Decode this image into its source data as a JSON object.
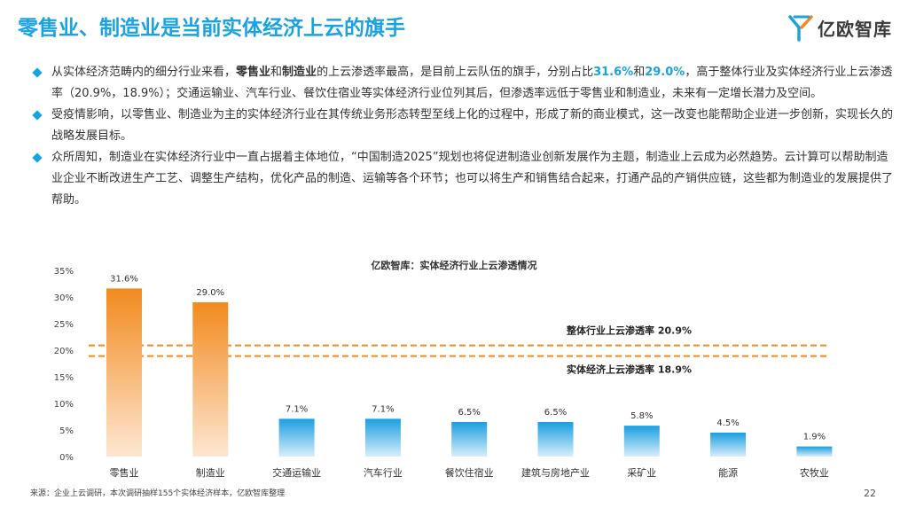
{
  "title": "零售业、制造业是当前实体经济上云的旗手",
  "logo": {
    "text": "亿欧智库",
    "icon": "yiou-logo-icon"
  },
  "bullets": [
    {
      "segments": [
        {
          "t": "从实体经济范畴内的细分行业来看，",
          "s": ""
        },
        {
          "t": "零售业",
          "s": "hl"
        },
        {
          "t": "和",
          "s": ""
        },
        {
          "t": "制造业",
          "s": "hl"
        },
        {
          "t": "的上云渗透率最高，是目前上云队伍的旗手，分别占比",
          "s": ""
        },
        {
          "t": "31.6%",
          "s": "hl-blue"
        },
        {
          "t": "和",
          "s": ""
        },
        {
          "t": "29.0%",
          "s": "hl-blue"
        },
        {
          "t": "，高于整体行业及实体经济行业上云渗透率（20.9%，18.9%）；交通运输业、汽车行业、餐饮住宿业等实体经济行业位列其后，但渗透率远低于零售业和制造业，未来有一定增长潜力及空间。",
          "s": ""
        }
      ]
    },
    {
      "segments": [
        {
          "t": "受疫情影响，以零售业、制造业为主的实体经济行业在其传统业务形态转型至线上化的过程中，形成了新的商业模式，这一改变也能帮助企业进一步创新，实现长久的战略发展目标。",
          "s": ""
        }
      ]
    },
    {
      "segments": [
        {
          "t": "众所周知，制造业在实体经济行业中一直占据着主体地位，“中国制造2025”规划也将促进制造业创新发展作为主题，制造业上云成为必然趋势。云计算可以帮助制造业企业不断改进生产工艺、调整生产结构，优化产品的制造、运输等各个环节；也可以将生产和销售结合起来，打通产品的产销供应链，这些都为制造业的发展提供了帮助。",
          "s": ""
        }
      ]
    }
  ],
  "chart_data": {
    "type": "bar",
    "title": "亿欧智库：实体经济行业上云渗透情况",
    "categories": [
      "零售业",
      "制造业",
      "交通运输业",
      "汽车行业",
      "餐饮住宿业",
      "建筑与房地产业",
      "采矿业",
      "能源",
      "农牧业"
    ],
    "values": [
      31.6,
      29.0,
      7.1,
      7.1,
      6.5,
      6.5,
      5.8,
      4.5,
      1.9
    ],
    "value_labels": [
      "31.6%",
      "29.0%",
      "7.1%",
      "7.1%",
      "6.5%",
      "6.5%",
      "5.8%",
      "4.5%",
      "1.9%"
    ],
    "highlight_count": 2,
    "ylim": [
      0,
      35
    ],
    "yticks": [
      0,
      5,
      10,
      15,
      20,
      25,
      30,
      35
    ],
    "ytick_labels": [
      "0%",
      "5%",
      "10%",
      "15%",
      "20%",
      "25%",
      "30%",
      "35%"
    ],
    "grid": false,
    "reference_lines": [
      {
        "value": 20.9,
        "label": "整体行业上云渗透率 20.9%"
      },
      {
        "value": 18.9,
        "label": "实体经济上云渗透率 18.9%"
      }
    ],
    "colors": {
      "highlight_top": "#f28a1e",
      "highlight_bottom": "#fde7d2",
      "normal_top": "#1a9fe0",
      "normal_bottom": "#d7eefb",
      "ref_line": "#f28a1e",
      "axis_text": "#444444"
    }
  },
  "footer": {
    "source": "来源：企业上云调研，本次调研抽样155个实体经济样本，亿欧智库整理",
    "page": "22"
  }
}
